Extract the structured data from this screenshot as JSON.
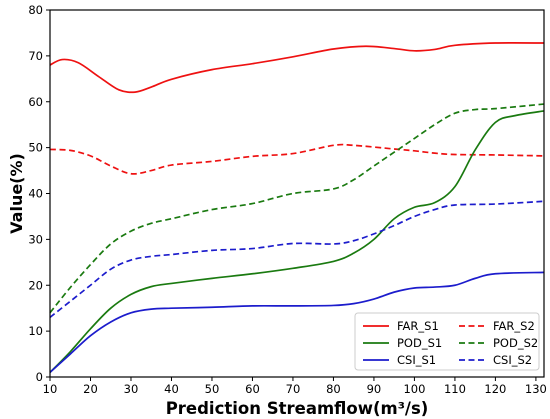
{
  "chart_data": {
    "type": "line",
    "xlabel": "Prediction Streamflow(m³/s)",
    "ylabel": "Value(%)",
    "xlim": [
      10,
      132
    ],
    "ylim": [
      0,
      80
    ],
    "xticks": [
      10,
      20,
      30,
      40,
      50,
      60,
      70,
      80,
      90,
      100,
      110,
      120,
      130
    ],
    "yticks": [
      0,
      10,
      20,
      30,
      40,
      50,
      60,
      70,
      80
    ],
    "grid": false,
    "legend_position": "bottom-right",
    "series": [
      {
        "name": "FAR_S1",
        "color": "#ee1111",
        "dash": "solid",
        "points": [
          [
            10,
            68
          ],
          [
            13,
            69.2
          ],
          [
            17,
            68.5
          ],
          [
            22,
            65.5
          ],
          [
            27,
            62.6
          ],
          [
            31,
            62.1
          ],
          [
            35,
            63.2
          ],
          [
            40,
            64.9
          ],
          [
            50,
            67
          ],
          [
            60,
            68.3
          ],
          [
            70,
            69.8
          ],
          [
            80,
            71.5
          ],
          [
            88,
            72.1
          ],
          [
            95,
            71.6
          ],
          [
            100,
            71.1
          ],
          [
            105,
            71.4
          ],
          [
            110,
            72.3
          ],
          [
            120,
            72.8
          ],
          [
            132,
            72.8
          ]
        ]
      },
      {
        "name": "FAR_S2",
        "color": "#ee1111",
        "dash": "dashed",
        "points": [
          [
            10,
            49.6
          ],
          [
            15,
            49.4
          ],
          [
            20,
            48.2
          ],
          [
            25,
            46
          ],
          [
            30,
            44.3
          ],
          [
            35,
            45
          ],
          [
            40,
            46.2
          ],
          [
            50,
            47
          ],
          [
            60,
            48.1
          ],
          [
            70,
            48.7
          ],
          [
            80,
            50.5
          ],
          [
            85,
            50.5
          ],
          [
            95,
            49.7
          ],
          [
            100,
            49.3
          ],
          [
            105,
            48.8
          ],
          [
            110,
            48.5
          ],
          [
            120,
            48.4
          ],
          [
            132,
            48.2
          ]
        ]
      },
      {
        "name": "POD_S1",
        "color": "#1a7a10",
        "dash": "solid",
        "points": [
          [
            10,
            1
          ],
          [
            15,
            5.5
          ],
          [
            20,
            10.5
          ],
          [
            25,
            15
          ],
          [
            30,
            18
          ],
          [
            35,
            19.7
          ],
          [
            40,
            20.4
          ],
          [
            50,
            21.5
          ],
          [
            60,
            22.5
          ],
          [
            70,
            23.7
          ],
          [
            80,
            25.2
          ],
          [
            85,
            27
          ],
          [
            90,
            30
          ],
          [
            95,
            34.5
          ],
          [
            100,
            37
          ],
          [
            105,
            38
          ],
          [
            110,
            41.5
          ],
          [
            115,
            49.5
          ],
          [
            120,
            55.5
          ],
          [
            125,
            57
          ],
          [
            132,
            58
          ]
        ]
      },
      {
        "name": "POD_S2",
        "color": "#1a7a10",
        "dash": "dashed",
        "points": [
          [
            10,
            14
          ],
          [
            15,
            19.5
          ],
          [
            20,
            24.5
          ],
          [
            25,
            29
          ],
          [
            30,
            31.8
          ],
          [
            35,
            33.5
          ],
          [
            40,
            34.5
          ],
          [
            50,
            36.5
          ],
          [
            60,
            37.8
          ],
          [
            70,
            40
          ],
          [
            80,
            41
          ],
          [
            85,
            43
          ],
          [
            90,
            46
          ],
          [
            95,
            49
          ],
          [
            100,
            52
          ],
          [
            105,
            55
          ],
          [
            110,
            57.5
          ],
          [
            115,
            58.3
          ],
          [
            120,
            58.5
          ],
          [
            132,
            59.5
          ]
        ]
      },
      {
        "name": "CSI_S1",
        "color": "#1c1ccc",
        "dash": "solid",
        "points": [
          [
            10,
            1
          ],
          [
            15,
            5
          ],
          [
            20,
            9
          ],
          [
            25,
            12
          ],
          [
            30,
            14
          ],
          [
            35,
            14.8
          ],
          [
            40,
            15
          ],
          [
            50,
            15.2
          ],
          [
            60,
            15.5
          ],
          [
            70,
            15.5
          ],
          [
            80,
            15.6
          ],
          [
            85,
            16
          ],
          [
            90,
            17
          ],
          [
            95,
            18.5
          ],
          [
            100,
            19.4
          ],
          [
            105,
            19.6
          ],
          [
            110,
            20
          ],
          [
            115,
            21.5
          ],
          [
            120,
            22.5
          ],
          [
            132,
            22.8
          ]
        ]
      },
      {
        "name": "CSI_S2",
        "color": "#1c1ccc",
        "dash": "dashed",
        "points": [
          [
            10,
            13
          ],
          [
            15,
            16.5
          ],
          [
            20,
            20
          ],
          [
            25,
            23.5
          ],
          [
            30,
            25.5
          ],
          [
            35,
            26.3
          ],
          [
            40,
            26.7
          ],
          [
            50,
            27.6
          ],
          [
            60,
            28
          ],
          [
            70,
            29.1
          ],
          [
            80,
            29
          ],
          [
            85,
            29.7
          ],
          [
            90,
            31.2
          ],
          [
            95,
            33
          ],
          [
            100,
            35
          ],
          [
            105,
            36.5
          ],
          [
            110,
            37.5
          ],
          [
            120,
            37.7
          ],
          [
            132,
            38.3
          ]
        ]
      }
    ]
  }
}
